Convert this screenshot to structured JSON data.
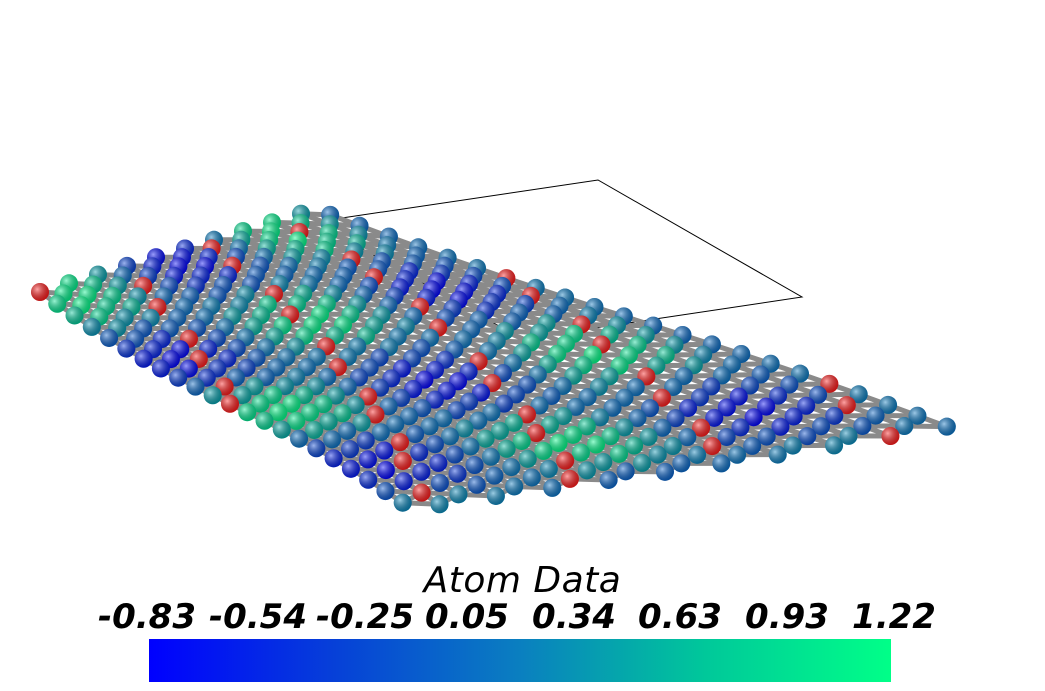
{
  "viewer": {
    "colorbar": {
      "title": "Atom Data",
      "tick_labels": [
        "-0.83",
        "-0.54",
        "-0.25",
        "0.05",
        "0.34",
        "0.63",
        "0.93",
        "1.22"
      ],
      "min": -0.83,
      "max": 1.22,
      "color_low": "#0000ff",
      "color_mid": "#0a7fc0",
      "color_high": "#00ff88"
    },
    "atom_colors": {
      "oxygen": "#ff1a1a",
      "bond": "#8a8a8a",
      "cell": "#000000"
    }
  }
}
